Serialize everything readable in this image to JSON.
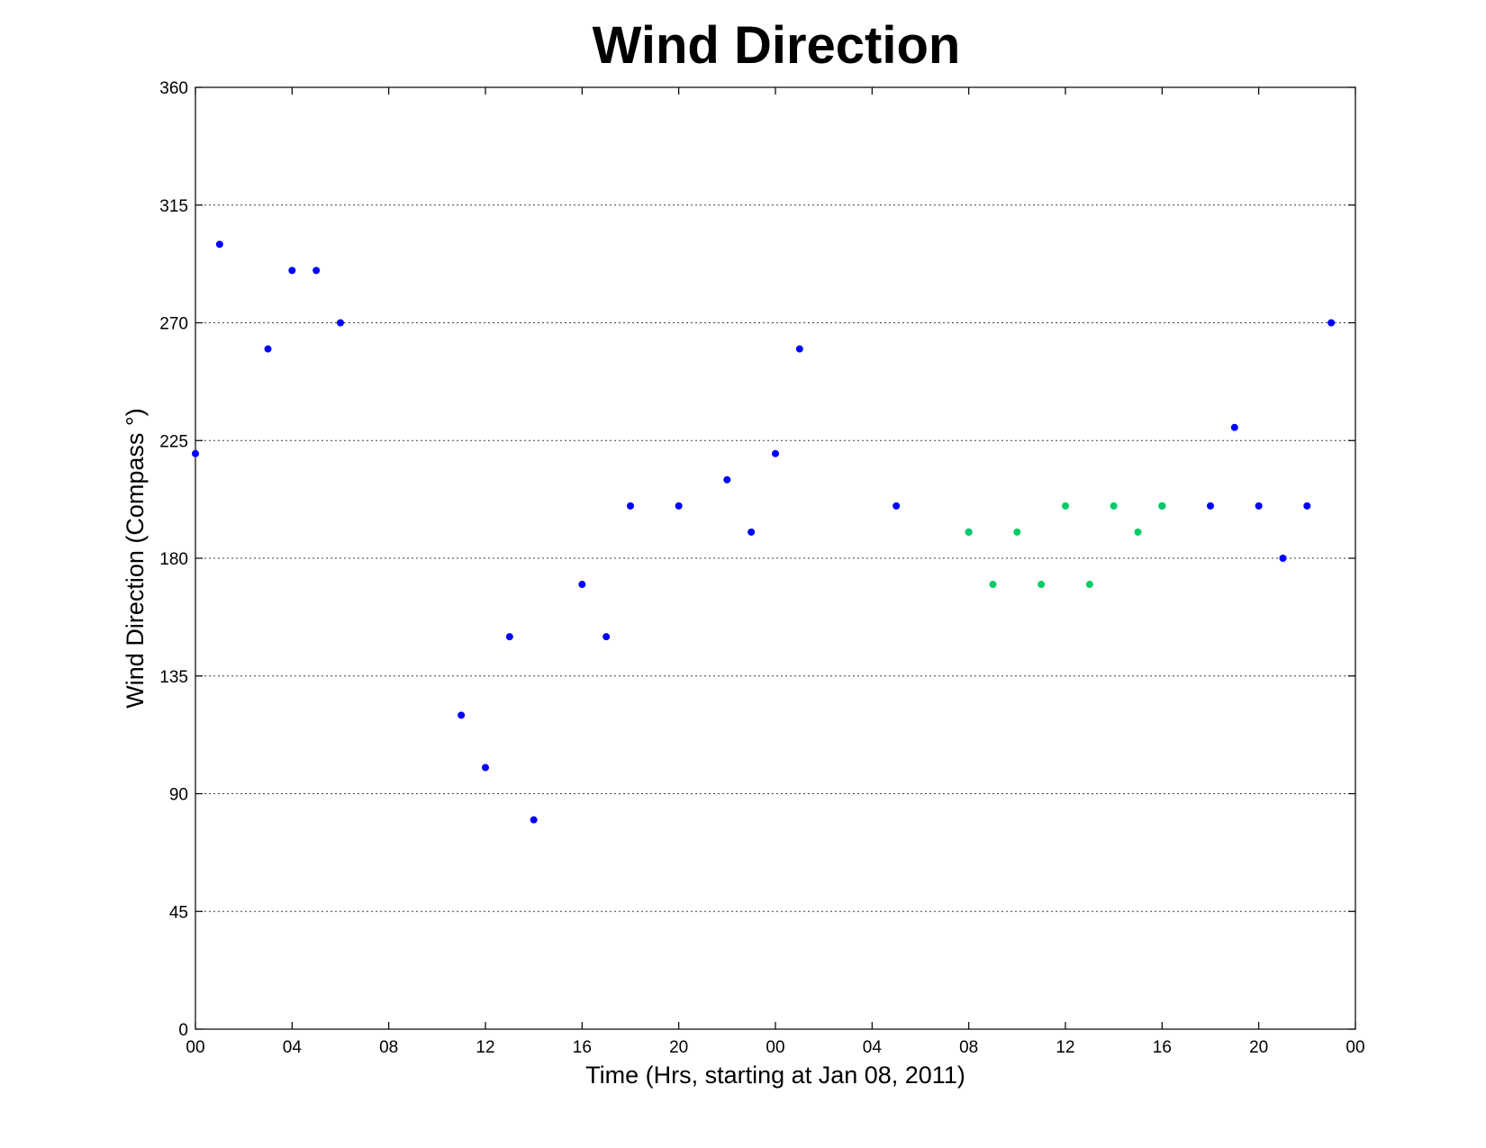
{
  "chart_data": {
    "type": "scatter",
    "title": "Wind Direction",
    "xlabel": "Time (Hrs, starting at Jan 08, 2011)",
    "ylabel": "Wind Direction (Compass  °)",
    "xlim": [
      0,
      48
    ],
    "ylim": [
      0,
      360
    ],
    "grid": "y-dotted",
    "x_ticks": [
      0,
      4,
      8,
      12,
      16,
      20,
      24,
      28,
      32,
      36,
      40,
      44,
      48
    ],
    "x_tick_labels": [
      "00",
      "04",
      "08",
      "12",
      "16",
      "20",
      "00",
      "04",
      "08",
      "12",
      "16",
      "20",
      "00"
    ],
    "y_ticks": [
      0,
      45,
      90,
      135,
      180,
      225,
      270,
      315,
      360
    ],
    "y_tick_labels": [
      "0",
      "45",
      "90",
      "135",
      "180",
      "225",
      "270",
      "315",
      "360"
    ],
    "series": [
      {
        "color": "#0000ff",
        "points": [
          [
            0,
            220
          ],
          [
            1,
            300
          ],
          [
            3,
            260
          ],
          [
            4,
            290
          ],
          [
            5,
            290
          ],
          [
            6,
            270
          ],
          [
            11,
            120
          ],
          [
            12,
            100
          ],
          [
            13,
            150
          ],
          [
            14,
            80
          ],
          [
            16,
            170
          ],
          [
            17,
            150
          ],
          [
            18,
            200
          ],
          [
            20,
            200
          ],
          [
            22,
            210
          ],
          [
            23,
            190
          ],
          [
            24,
            220
          ],
          [
            25,
            260
          ],
          [
            29,
            200
          ],
          [
            32,
            190
          ],
          [
            40,
            200
          ],
          [
            42,
            200
          ],
          [
            43,
            230
          ],
          [
            44,
            200
          ],
          [
            45,
            180
          ],
          [
            46,
            200
          ],
          [
            47,
            270
          ]
        ]
      },
      {
        "color": "#00cc66",
        "points": [
          [
            32,
            190
          ],
          [
            33,
            170
          ],
          [
            34,
            190
          ],
          [
            35,
            170
          ],
          [
            36,
            200
          ],
          [
            37,
            170
          ],
          [
            38,
            200
          ],
          [
            39,
            190
          ],
          [
            40,
            200
          ]
        ]
      }
    ]
  }
}
